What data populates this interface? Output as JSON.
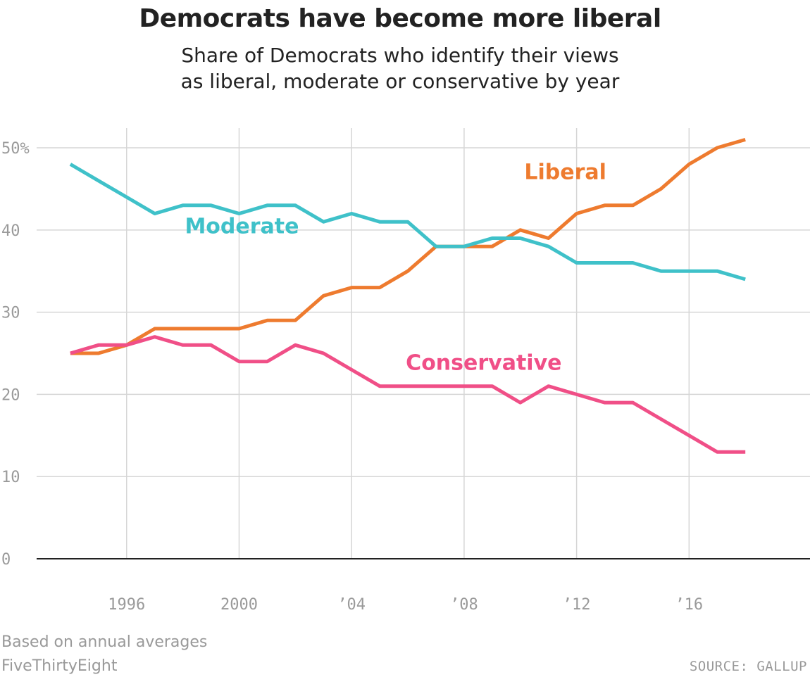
{
  "chart_data": {
    "type": "line",
    "title": "Democrats have become more liberal",
    "subtitle": "Share of Democrats who identify their views\nas liberal, moderate or conservative by year",
    "x": [
      1994,
      1995,
      1996,
      1997,
      1998,
      1999,
      2000,
      2001,
      2002,
      2003,
      2004,
      2005,
      2006,
      2007,
      2008,
      2009,
      2010,
      2011,
      2012,
      2013,
      2014,
      2015,
      2016,
      2017,
      2018
    ],
    "x_ticks": [
      {
        "value": 1996,
        "label": "1996"
      },
      {
        "value": 2000,
        "label": "2000"
      },
      {
        "value": 2004,
        "label": "’04"
      },
      {
        "value": 2008,
        "label": "’08"
      },
      {
        "value": 2012,
        "label": "’12"
      },
      {
        "value": 2016,
        "label": "’16"
      }
    ],
    "y_ticks": [
      {
        "value": 0,
        "label": "0"
      },
      {
        "value": 10,
        "label": "10"
      },
      {
        "value": 20,
        "label": "20"
      },
      {
        "value": 30,
        "label": "30"
      },
      {
        "value": 40,
        "label": "40"
      },
      {
        "value": 50,
        "label": "50%"
      }
    ],
    "xlim": [
      1992.8,
      2020.3
    ],
    "ylim": [
      0,
      53
    ],
    "grid": true,
    "legend": "direct labels on lines",
    "series": [
      {
        "name": "Liberal",
        "color": "#ee7b2f",
        "values": [
          25,
          25,
          26,
          28,
          28,
          28,
          28,
          29,
          29,
          32,
          33,
          33,
          35,
          38,
          38,
          38,
          40,
          39,
          42,
          43,
          43,
          45,
          48,
          50,
          51
        ]
      },
      {
        "name": "Moderate",
        "color": "#3fc1c9",
        "values": [
          48,
          46,
          44,
          42,
          43,
          43,
          42,
          43,
          43,
          41,
          42,
          41,
          41,
          38,
          38,
          39,
          39,
          38,
          36,
          36,
          36,
          35,
          35,
          35,
          34
        ]
      },
      {
        "name": "Conservative",
        "color": "#f04f87",
        "values": [
          25,
          26,
          26,
          27,
          26,
          26,
          24,
          24,
          26,
          25,
          23,
          21,
          21,
          21,
          21,
          21,
          19,
          21,
          20,
          19,
          19,
          17,
          15,
          13,
          13
        ]
      }
    ]
  },
  "footer": {
    "note": "Based on annual averages",
    "brand": "FiveThirtyEight",
    "source": "SOURCE: GALLUP"
  }
}
